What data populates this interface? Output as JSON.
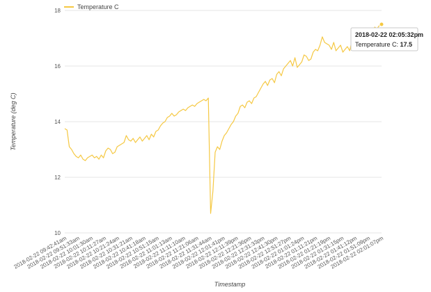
{
  "legend": {
    "label": "Temperature C",
    "color": "#f5c842"
  },
  "tooltip": {
    "title": "2018-02-22 02:05:32pm",
    "series_label": "Temperature C: ",
    "value": "17.5"
  },
  "chart_data": {
    "type": "line",
    "title": "",
    "xlabel": "Timestamp",
    "ylabel": "Temperature (deg C)",
    "ylim": [
      10,
      18
    ],
    "yticks": [
      "10",
      "12",
      "14",
      "16",
      "18"
    ],
    "grid": "horizontal",
    "legend_position": "top-left",
    "x_tick_labels": [
      "2018-02-22 09:42:41am",
      "2018-02-22 09:51:33am",
      "2018-02-22 10:01:30am",
      "2018-02-22 10:11:27am",
      "2018-02-22 10:21:24am",
      "2018-02-22 10:31:21am",
      "2018-02-22 10:41:18am",
      "2018-02-22 10:51:15am",
      "2018-02-22 11:01:13am",
      "2018-02-22 11:11:10am",
      "2018-02-22 11:21:06am",
      "2018-02-22 11:31:44am",
      "2018-02-22 12:01:41pm",
      "2018-02-22 12:11:39pm",
      "2018-02-22 12:21:36pm",
      "2018-02-22 12:31:33pm",
      "2018-02-22 12:41:30pm",
      "2018-02-22 12:51:27pm",
      "2018-02-22 01:01:24pm",
      "2018-02-22 01:11:21pm",
      "2018-02-22 01:21:19pm",
      "2018-02-22 01:31:15pm",
      "2018-02-22 01:41:12pm",
      "2018-02-22 01:51:09pm",
      "2018-02-22 02:01:07pm"
    ],
    "series": [
      {
        "name": "Temperature C",
        "color": "#f5c842",
        "values": [
          13.75,
          13.7,
          13.1,
          13.0,
          12.85,
          12.75,
          12.7,
          12.8,
          12.65,
          12.6,
          12.7,
          12.75,
          12.8,
          12.7,
          12.75,
          12.65,
          12.8,
          12.7,
          12.95,
          13.05,
          13.0,
          12.85,
          12.9,
          13.1,
          13.15,
          13.2,
          13.25,
          13.5,
          13.35,
          13.3,
          13.4,
          13.25,
          13.35,
          13.45,
          13.3,
          13.4,
          13.5,
          13.35,
          13.55,
          13.45,
          13.65,
          13.7,
          13.85,
          13.95,
          14.0,
          14.15,
          14.2,
          14.3,
          14.2,
          14.25,
          14.35,
          14.4,
          14.45,
          14.4,
          14.5,
          14.55,
          14.6,
          14.55,
          14.65,
          14.7,
          14.75,
          14.8,
          14.75,
          14.85,
          10.7,
          11.5,
          12.9,
          13.1,
          13.0,
          13.3,
          13.5,
          13.6,
          13.75,
          13.9,
          14.0,
          14.2,
          14.3,
          14.55,
          14.6,
          14.5,
          14.7,
          14.75,
          14.65,
          14.85,
          14.9,
          15.05,
          15.2,
          15.35,
          15.45,
          15.3,
          15.5,
          15.55,
          15.4,
          15.7,
          15.8,
          15.65,
          15.9,
          16.0,
          16.1,
          16.2,
          16.0,
          16.3,
          15.95,
          16.05,
          16.15,
          16.4,
          16.35,
          16.2,
          16.25,
          16.5,
          16.6,
          16.55,
          16.75,
          17.05,
          16.85,
          16.8,
          16.75,
          16.6,
          16.85,
          16.55,
          16.65,
          16.75,
          16.5,
          16.6,
          16.7,
          16.55,
          16.9,
          16.8,
          17.1,
          17.05,
          17.15,
          17.25,
          17.2,
          17.3,
          17.35,
          17.3,
          17.4,
          17.35,
          17.45,
          17.5
        ]
      }
    ],
    "highlight_point": {
      "index": 139,
      "value": 17.5
    }
  }
}
